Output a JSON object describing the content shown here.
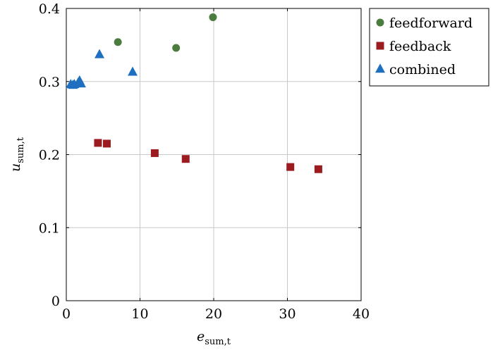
{
  "chart_data": {
    "type": "scatter",
    "xlabel": {
      "main": "e",
      "sub": "sum,t"
    },
    "ylabel": {
      "main": "u",
      "sub": "sum,t"
    },
    "xlim": [
      0,
      40
    ],
    "ylim": [
      0,
      0.4
    ],
    "x_ticks": [
      0,
      10,
      20,
      30,
      40
    ],
    "y_ticks": [
      0,
      0.1,
      0.2,
      0.3,
      0.4
    ],
    "x_tick_labels": [
      "0",
      "10",
      "20",
      "30",
      "40"
    ],
    "y_tick_labels": [
      "0",
      "0.1",
      "0.2",
      "0.3",
      "0.4"
    ],
    "grid": true,
    "legend_position": "outside-top-right",
    "series": [
      {
        "name": "feedforward",
        "marker": "circle",
        "color": "#4a7c3f",
        "points": [
          {
            "x": 7.0,
            "y": 0.354
          },
          {
            "x": 14.9,
            "y": 0.346
          },
          {
            "x": 19.9,
            "y": 0.388
          }
        ]
      },
      {
        "name": "feedback",
        "marker": "square",
        "color": "#9b1b1f",
        "points": [
          {
            "x": 4.3,
            "y": 0.216
          },
          {
            "x": 5.5,
            "y": 0.215
          },
          {
            "x": 12.0,
            "y": 0.202
          },
          {
            "x": 16.2,
            "y": 0.194
          },
          {
            "x": 30.4,
            "y": 0.183
          },
          {
            "x": 34.2,
            "y": 0.18
          }
        ]
      },
      {
        "name": "combined",
        "marker": "triangle",
        "color": "#1f6fc1",
        "points": [
          {
            "x": 0.6,
            "y": 0.296
          },
          {
            "x": 0.9,
            "y": 0.295
          },
          {
            "x": 1.1,
            "y": 0.296
          },
          {
            "x": 1.6,
            "y": 0.298
          },
          {
            "x": 1.8,
            "y": 0.301
          },
          {
            "x": 2.0,
            "y": 0.297
          },
          {
            "x": 4.5,
            "y": 0.337
          },
          {
            "x": 9.0,
            "y": 0.313
          }
        ]
      }
    ]
  }
}
